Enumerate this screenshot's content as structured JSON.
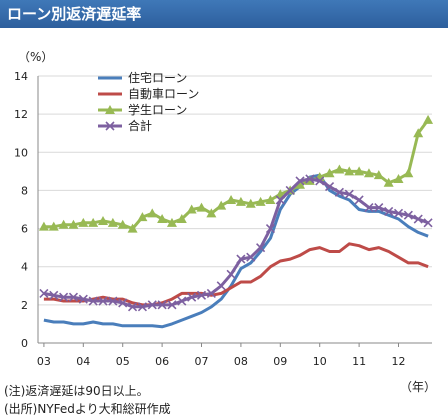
{
  "header": {
    "title": "ローン別返済遅延率"
  },
  "chart_data": {
    "type": "line",
    "ylabel_unit": "（%）",
    "xlabel_unit": "（年）",
    "ylim": [
      0,
      14
    ],
    "yticks": [
      "0",
      "2",
      "4",
      "6",
      "8",
      "10",
      "12",
      "14"
    ],
    "x_tick_labels": [
      "03",
      "04",
      "05",
      "06",
      "07",
      "08",
      "09",
      "10",
      "11",
      "12"
    ],
    "x_tick_years": [
      2003,
      2004,
      2005,
      2006,
      2007,
      2008,
      2009,
      2010,
      2011,
      2012
    ],
    "x": [
      2003.0,
      2003.25,
      2003.5,
      2003.75,
      2004.0,
      2004.25,
      2004.5,
      2004.75,
      2005.0,
      2005.25,
      2005.5,
      2005.75,
      2006.0,
      2006.25,
      2006.5,
      2006.75,
      2007.0,
      2007.25,
      2007.5,
      2007.75,
      2008.0,
      2008.25,
      2008.5,
      2008.75,
      2009.0,
      2009.25,
      2009.5,
      2009.75,
      2010.0,
      2010.25,
      2010.5,
      2010.75,
      2011.0,
      2011.25,
      2011.5,
      2011.75,
      2012.0,
      2012.25,
      2012.5,
      2012.75
    ],
    "grid": "horizontal",
    "legend_position": "top-left",
    "series": [
      {
        "name": "住宅ローン",
        "color": "#4a7ebb",
        "marker": "none",
        "values": [
          1.2,
          1.1,
          1.1,
          1.0,
          1.0,
          1.1,
          1.0,
          1.0,
          0.9,
          0.9,
          0.9,
          0.9,
          0.85,
          1.0,
          1.2,
          1.4,
          1.6,
          1.9,
          2.3,
          3.0,
          3.9,
          4.2,
          4.8,
          5.5,
          7.0,
          7.8,
          8.2,
          8.7,
          8.8,
          8.0,
          7.7,
          7.5,
          7.0,
          6.9,
          6.9,
          6.7,
          6.5,
          6.1,
          5.8,
          5.6
        ]
      },
      {
        "name": "自動車ローン",
        "color": "#be4b48",
        "marker": "none",
        "values": [
          2.3,
          2.3,
          2.2,
          2.2,
          2.2,
          2.3,
          2.4,
          2.3,
          2.3,
          2.1,
          2.0,
          2.0,
          2.1,
          2.3,
          2.6,
          2.6,
          2.6,
          2.5,
          2.6,
          2.9,
          3.2,
          3.2,
          3.5,
          4.0,
          4.3,
          4.4,
          4.6,
          4.9,
          5.0,
          4.8,
          4.8,
          5.2,
          5.1,
          4.9,
          5.0,
          4.8,
          4.5,
          4.2,
          4.2,
          4.0
        ]
      },
      {
        "name": "学生ローン",
        "color": "#98b954",
        "marker": "triangle",
        "values": [
          6.1,
          6.1,
          6.2,
          6.2,
          6.3,
          6.3,
          6.4,
          6.3,
          6.2,
          6.0,
          6.6,
          6.8,
          6.5,
          6.3,
          6.5,
          7.0,
          7.1,
          6.8,
          7.2,
          7.5,
          7.4,
          7.3,
          7.4,
          7.5,
          7.8,
          8.0,
          8.3,
          8.5,
          8.7,
          8.9,
          9.1,
          9.0,
          9.0,
          8.9,
          8.8,
          8.4,
          8.6,
          8.9,
          11.0,
          11.7
        ]
      },
      {
        "name": "合計",
        "color": "#7d60a0",
        "marker": "x",
        "values": [
          2.6,
          2.5,
          2.4,
          2.4,
          2.3,
          2.2,
          2.2,
          2.2,
          2.1,
          1.9,
          1.9,
          2.0,
          2.0,
          2.0,
          2.2,
          2.4,
          2.5,
          2.6,
          3.0,
          3.6,
          4.4,
          4.5,
          5.0,
          6.0,
          7.5,
          8.0,
          8.5,
          8.6,
          8.5,
          8.2,
          7.9,
          7.8,
          7.5,
          7.1,
          7.1,
          6.9,
          6.8,
          6.7,
          6.5,
          6.3
        ]
      }
    ]
  },
  "notes": {
    "note1": "(注)返済遅延は90日以上。",
    "note2": "(出所)NYFedより大和総研作成"
  }
}
